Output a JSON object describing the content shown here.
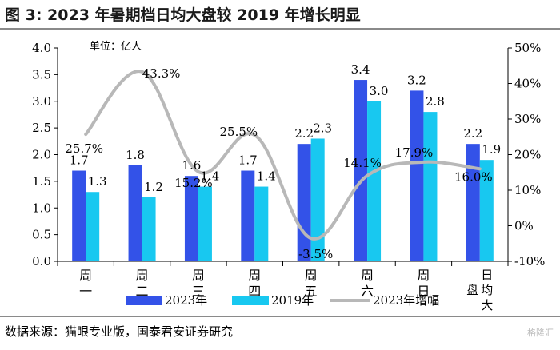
{
  "title": "图 3:  2023 年暑期档日均大盘较 2019 年增长明显",
  "unit_note": "单位：亿人",
  "source": "数据来源：猫眼专业版，国泰君安证券研究",
  "watermark": "格隆汇",
  "colors": {
    "bar2023": "#3352e8",
    "bar2019": "#18c8f0",
    "line": "#b8b8b8"
  },
  "chart_data": {
    "type": "bar",
    "categories": [
      "周一",
      "周二",
      "周三",
      "周四",
      "周五",
      "周六",
      "周日",
      "日均大盘"
    ],
    "category_label_lines": [
      [
        "周",
        "一"
      ],
      [
        "周",
        "二"
      ],
      [
        "周",
        "三"
      ],
      [
        "周",
        "四"
      ],
      [
        "周",
        "五"
      ],
      [
        "周",
        "六"
      ],
      [
        "周",
        "日"
      ],
      [
        "日均大盘"
      ]
    ],
    "series": [
      {
        "name": "2023年",
        "values": [
          1.7,
          1.8,
          1.6,
          1.7,
          2.2,
          3.4,
          3.2,
          2.2
        ],
        "labels": [
          "1.7",
          "1.8",
          "1.6",
          "1.7",
          "2.2",
          "3.4",
          "3.2",
          "2.2"
        ]
      },
      {
        "name": "2019年",
        "values": [
          1.3,
          1.2,
          1.4,
          1.4,
          2.3,
          3.0,
          2.8,
          1.9
        ],
        "labels": [
          "1.3",
          "1.2",
          "1.4",
          "1.4",
          "2.3",
          "3.0",
          "2.8",
          "1.9"
        ]
      }
    ],
    "line_series": {
      "name": "2023年增幅",
      "values": [
        25.7,
        43.3,
        15.2,
        25.5,
        -3.5,
        14.1,
        17.9,
        16.0
      ],
      "labels": [
        "25.7%",
        "43.3%",
        "15.2%",
        "25.5%",
        "-3.5%",
        "14.1%",
        "17.9%",
        "16.0%"
      ],
      "axis": "right"
    },
    "y_left": {
      "range": [
        0,
        4.0
      ],
      "ticks": [
        "0.0",
        "0.5",
        "1.0",
        "1.5",
        "2.0",
        "2.5",
        "3.0",
        "3.5",
        "4.0"
      ]
    },
    "y_right": {
      "range": [
        -10,
        50
      ],
      "ticks": [
        "-10%",
        "0%",
        "10%",
        "20%",
        "30%",
        "40%",
        "50%"
      ]
    },
    "legend_position": "bottom",
    "grid": false
  }
}
